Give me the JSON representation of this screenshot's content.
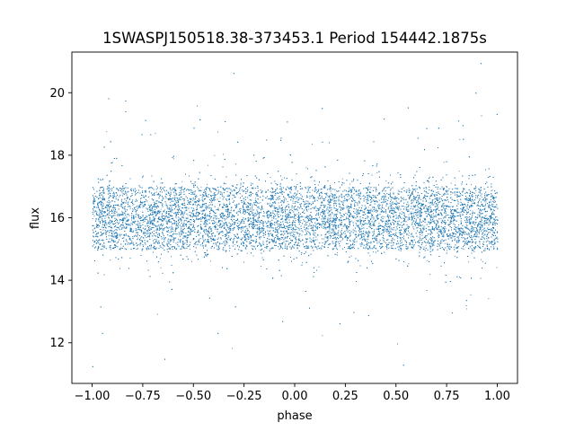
{
  "chart_data": {
    "type": "scatter",
    "title": "1SWASPJ150518.38-373453.1 Period 154442.1875s",
    "xlabel": "phase",
    "ylabel": "flux",
    "xlim": [
      -1.1,
      1.1
    ],
    "ylim": [
      10.7,
      21.3
    ],
    "xticks": [
      -1.0,
      -0.75,
      -0.5,
      -0.25,
      0.0,
      0.25,
      0.5,
      0.75,
      1.0
    ],
    "xtick_labels": [
      "−1.00",
      "−0.75",
      "−0.50",
      "−0.25",
      "0.00",
      "0.25",
      "0.50",
      "0.75",
      "1.00"
    ],
    "yticks": [
      12,
      14,
      16,
      18,
      20
    ],
    "ytick_labels": [
      "12",
      "14",
      "16",
      "18",
      "20"
    ],
    "grid": false,
    "legend": "none",
    "marker_color": "#1f77b4",
    "series": [
      {
        "x_range": [
          -1.0,
          1.0
        ],
        "y_min": 11.2,
        "y_max": 21.0,
        "median_flux": 16.0,
        "core_range": [
          15.0,
          17.0
        ],
        "note_shape": "dense band symmetric about phase 0"
      }
    ]
  }
}
